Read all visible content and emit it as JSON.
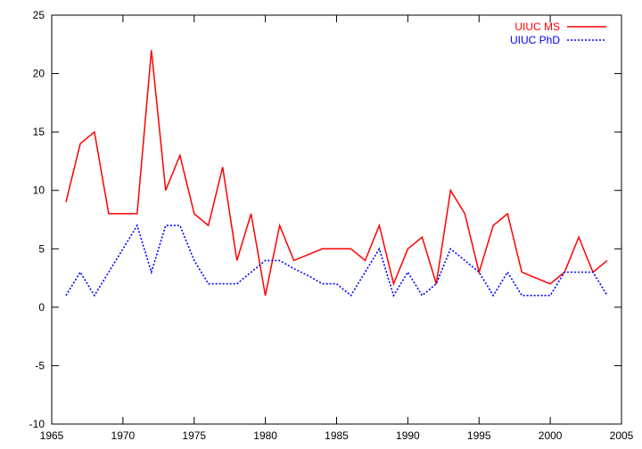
{
  "chart_data": {
    "type": "line",
    "title": "",
    "xlabel": "",
    "ylabel": "",
    "xlim": [
      1965,
      2005
    ],
    "ylim": [
      -10,
      25
    ],
    "xticks": [
      1965,
      1970,
      1975,
      1980,
      1985,
      1990,
      1995,
      2000,
      2005
    ],
    "yticks": [
      -10,
      -5,
      0,
      5,
      10,
      15,
      20,
      25
    ],
    "grid": false,
    "legend_position": "top-right",
    "x": [
      1966,
      1967,
      1968,
      1969,
      1970,
      1971,
      1972,
      1973,
      1974,
      1975,
      1976,
      1977,
      1978,
      1979,
      1980,
      1981,
      1982,
      1983,
      1984,
      1985,
      1986,
      1987,
      1988,
      1989,
      1990,
      1991,
      1992,
      1993,
      1994,
      1995,
      1996,
      1997,
      1998,
      1999,
      2000,
      2001,
      2002,
      2003,
      2004
    ],
    "series": [
      {
        "name": "UIUC MS",
        "color": "#ff0000",
        "style": "solid",
        "values": [
          9,
          14,
          15,
          8,
          8,
          8,
          22,
          10,
          13,
          8,
          7,
          12,
          4,
          8,
          1,
          7,
          4,
          4.5,
          5,
          5,
          5,
          4,
          7,
          2,
          5,
          6,
          2,
          10,
          8,
          3,
          7,
          8,
          3,
          2.5,
          2,
          3,
          6,
          3,
          4
        ]
      },
      {
        "name": "UIUC PhD",
        "color": "#0000ff",
        "style": "dotted",
        "values": [
          1,
          3,
          1,
          3,
          5,
          7,
          3,
          7,
          7,
          4,
          2,
          2,
          2,
          3,
          4,
          4,
          3.3,
          2.7,
          2,
          2,
          1,
          3,
          5,
          1,
          3,
          1,
          2,
          5,
          4,
          3,
          1,
          3,
          1,
          1,
          1,
          3,
          3,
          3,
          1
        ]
      }
    ]
  }
}
